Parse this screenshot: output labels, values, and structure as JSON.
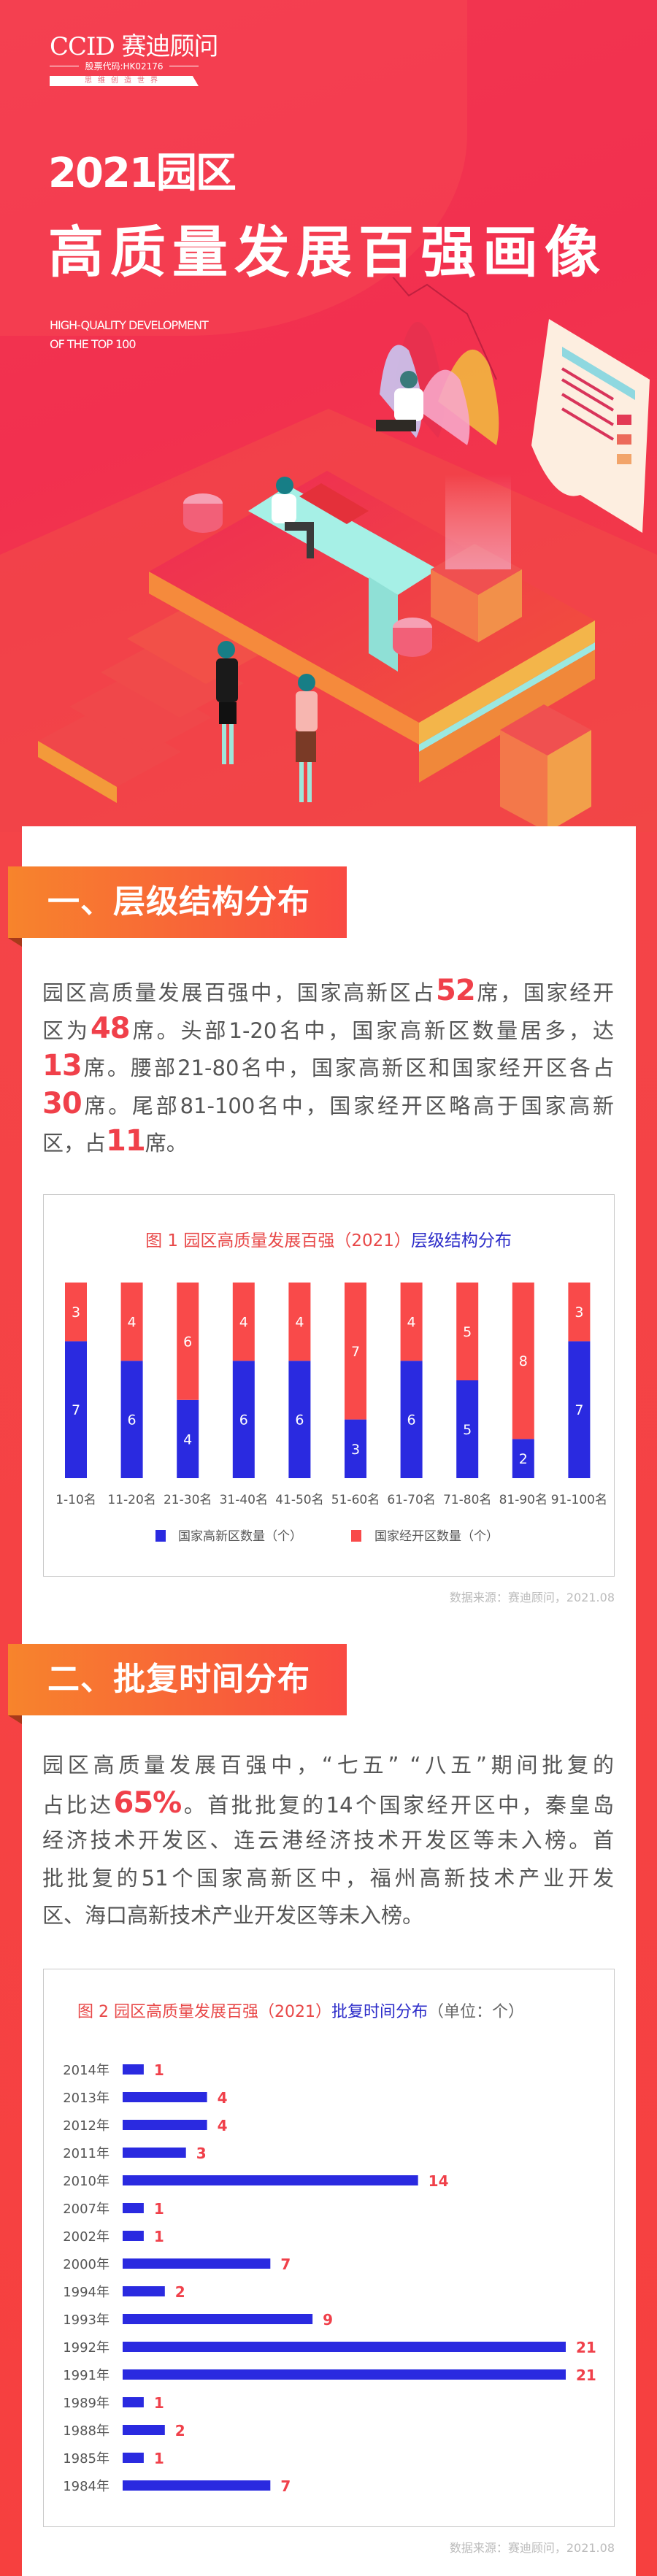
{
  "header": {
    "logo": "CCID 赛迪顾问",
    "stock_code": "股票代码:HK02176",
    "slogan": "思维创造世界",
    "title_line1": "2021园区",
    "title_line2": "高质量发展百强画像",
    "subtitle_en_line1": "HIGH-QUALITY DEVELOPMENT",
    "subtitle_en_line2": "OF THE TOP 100"
  },
  "colors": {
    "accent_red": "#f0404a",
    "bar_blue": "#2a2ae0",
    "bar_red": "#f94a4a",
    "title_blue": "#2c2cc9"
  },
  "section1": {
    "heading": "一、层级结构分布",
    "lines": [
      [
        {
          "t": "园区高质量发展百强中，国家高新区占"
        },
        {
          "t": "52",
          "hl": true
        },
        {
          "t": "席，国家经开"
        }
      ],
      [
        {
          "t": "区为"
        },
        {
          "t": "48",
          "hl": true
        },
        {
          "t": "席。头部1-20名中，国家高新区数量居多，达"
        }
      ],
      [
        {
          "t": "13",
          "hl": true
        },
        {
          "t": "席。腰部21-80名中，国家高新区和国家经开区各占"
        }
      ],
      [
        {
          "t": "30",
          "hl": true
        },
        {
          "t": "席。尾部81-100名中，国家经开区略高于国家高新"
        }
      ],
      [
        {
          "t": "区，占"
        },
        {
          "t": "11",
          "hl": true
        },
        {
          "t": "席。"
        }
      ]
    ],
    "source": "数据来源：赛迪顾问，2021.08"
  },
  "section2": {
    "heading": "二、批复时间分布",
    "lines": [
      [
        {
          "t": "园区高质量发展百强中，“七五” “八五”期间批复的"
        }
      ],
      [
        {
          "t": "占比达"
        },
        {
          "t": "65%",
          "hl": true
        },
        {
          "t": "。首批批复的14个国家经开区中，秦皇岛"
        }
      ],
      [
        {
          "t": "经济技术开发区、连云港经济技术开发区等未入榜。首"
        }
      ],
      [
        {
          "t": "批批复的51个国家高新区中，福州高新技术产业开发"
        }
      ],
      [
        {
          "t": "区、海口高新技术产业开发区等未入榜。"
        }
      ]
    ],
    "source": "数据来源：赛迪顾问，2021.08"
  },
  "chart_data": [
    {
      "type": "bar",
      "stacked": true,
      "title_red": "图 1 园区高质量发展百强（2021）",
      "title_blue": "层级结构分布",
      "categories": [
        "1-10名",
        "11-20名",
        "21-30名",
        "31-40名",
        "41-50名",
        "51-60名",
        "61-70名",
        "71-80名",
        "81-90名",
        "91-100名"
      ],
      "series": [
        {
          "name": "国家高新区数量（个）",
          "color": "#2a2ae0",
          "values": [
            7,
            6,
            4,
            6,
            6,
            3,
            6,
            5,
            2,
            7
          ]
        },
        {
          "name": "国家经开区数量（个）",
          "color": "#f94a4a",
          "values": [
            3,
            4,
            6,
            4,
            4,
            7,
            4,
            5,
            8,
            3
          ]
        }
      ],
      "ylim": [
        0,
        10
      ],
      "legend": "bottom",
      "grid": false
    },
    {
      "type": "bar",
      "orientation": "horizontal",
      "title_red": "图 2 园区高质量发展百强（2021）",
      "title_blue": "批复时间分布",
      "title_unit": "（单位：个）",
      "categories": [
        "2014年",
        "2013年",
        "2012年",
        "2011年",
        "2010年",
        "2007年",
        "2002年",
        "2000年",
        "1994年",
        "1993年",
        "1992年",
        "1991年",
        "1989年",
        "1988年",
        "1985年",
        "1984年"
      ],
      "values": [
        1,
        4,
        4,
        3,
        14,
        1,
        1,
        7,
        2,
        9,
        21,
        21,
        1,
        2,
        1,
        7
      ],
      "color": "#2a2ae0",
      "label_color": "#f0404a",
      "xlim": [
        0,
        21
      ],
      "grid": false
    }
  ]
}
